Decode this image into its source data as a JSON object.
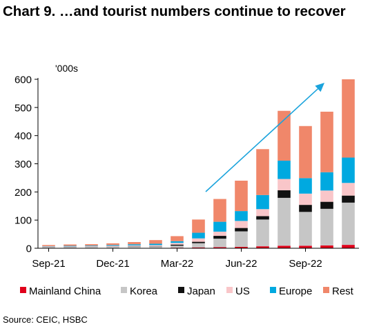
{
  "title": "Chart 9. …and tourist numbers continue to recover",
  "source": "Source: CEIC, HSBC",
  "chart_data": {
    "type": "bar",
    "stacked": true,
    "ylabel": "'000s",
    "ylim": [
      0,
      600
    ],
    "yticks": [
      0,
      100,
      200,
      300,
      400,
      500,
      600
    ],
    "xtick_labels": [
      "Sep-21",
      "Dec-21",
      "Mar-22",
      "Jun-22",
      "Sep-22"
    ],
    "xtick_indices": [
      0,
      3,
      6,
      9,
      12
    ],
    "categories": [
      "Sep-21",
      "Oct-21",
      "Nov-21",
      "Dec-21",
      "Jan-22",
      "Feb-22",
      "Mar-22",
      "Apr-22",
      "May-22",
      "Jun-22",
      "Jul-22",
      "Aug-22",
      "Sep-22",
      "Oct-22",
      "Nov-22"
    ],
    "legend_position": "bottom",
    "trend_arrow": true,
    "series": [
      {
        "name": "Mainland China",
        "color": "#e0001b",
        "values": [
          1,
          1,
          1,
          1,
          1,
          1,
          2,
          3,
          4,
          5,
          7,
          9,
          9,
          10,
          12
        ]
      },
      {
        "name": "Korea",
        "color": "#c6c6c6",
        "values": [
          3,
          3,
          4,
          4,
          5,
          5,
          7,
          15,
          30,
          55,
          95,
          170,
          120,
          130,
          150
        ]
      },
      {
        "name": "Japan",
        "color": "#111111",
        "values": [
          0.5,
          0.5,
          0.5,
          0.5,
          1,
          1,
          4,
          5,
          10,
          12,
          12,
          27,
          25,
          25,
          25
        ]
      },
      {
        "name": "US",
        "color": "#f9c6c9",
        "values": [
          2,
          2,
          2,
          3,
          3,
          4,
          6,
          12,
          15,
          25,
          25,
          40,
          40,
          40,
          45
        ]
      },
      {
        "name": "Europe",
        "color": "#00a9e0",
        "values": [
          1,
          2,
          2,
          3,
          4,
          5,
          6,
          20,
          35,
          35,
          50,
          65,
          55,
          65,
          90
        ]
      },
      {
        "name": "Rest",
        "color": "#f0876a",
        "values": [
          4,
          5,
          5,
          6,
          8,
          13,
          18,
          47,
          81,
          108,
          163,
          177,
          185,
          215,
          278
        ]
      }
    ]
  }
}
